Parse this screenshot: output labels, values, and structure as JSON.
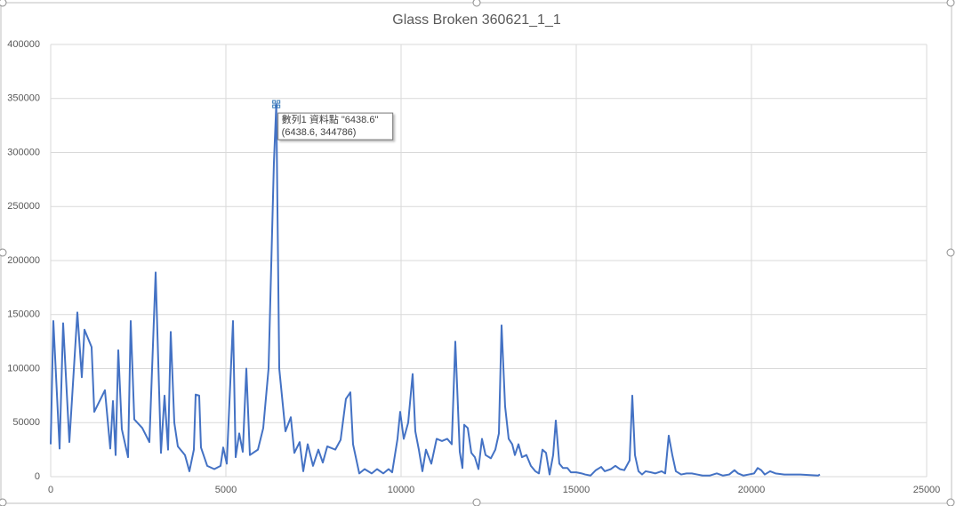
{
  "chart_data": {
    "type": "line",
    "title": "Glass Broken 360621_1_1",
    "x": [
      0,
      76,
      254,
      355,
      533,
      761,
      888,
      964,
      1167,
      1244,
      1548,
      1700,
      1777,
      1853,
      1929,
      2030,
      2208,
      2284,
      2386,
      2614,
      2817,
      2995,
      3147,
      3249,
      3350,
      3426,
      3528,
      3629,
      3832,
      3959,
      4086,
      4137,
      4238,
      4289,
      4467,
      4670,
      4848,
      4924,
      5025,
      5203,
      5279,
      5381,
      5482,
      5584,
      5685,
      5914,
      6066,
      6218,
      6370,
      6438.6,
      6523,
      6700,
      6853,
      6954,
      7106,
      7208,
      7335,
      7487,
      7639,
      7766,
      7893,
      8122,
      8274,
      8426,
      8553,
      8629,
      8807,
      8959,
      9162,
      9314,
      9492,
      9644,
      9746,
      9898,
      9974,
      10076,
      10203,
      10330,
      10406,
      10507,
      10609,
      10710,
      10863,
      11015,
      11167,
      11319,
      11446,
      11548,
      11675,
      11751,
      11802,
      11903,
      12005,
      12106,
      12208,
      12309,
      12411,
      12563,
      12690,
      12792,
      12868,
      12969,
      13071,
      13172,
      13248,
      13350,
      13451,
      13578,
      13705,
      13832,
      13934,
      14035,
      14137,
      14238,
      14340,
      14416,
      14517,
      14619,
      14746,
      14847,
      15000,
      15152,
      15253,
      15406,
      15558,
      15710,
      15812,
      15989,
      16116,
      16243,
      16370,
      16522,
      16599,
      16675,
      16776,
      16878,
      16979,
      17132,
      17258,
      17436,
      17538,
      17639,
      17741,
      17842,
      17994,
      18147,
      18299,
      18451,
      18604,
      18807,
      19010,
      19187,
      19365,
      19517,
      19618,
      19771,
      19923,
      20076,
      20177,
      20279,
      20380,
      20532,
      20685,
      20939,
      21395,
      21903,
      21954
    ],
    "series": [
      {
        "name": "數列1",
        "color": "#4472c4",
        "values": [
          30000,
          144000,
          26000,
          142000,
          32000,
          152000,
          92000,
          136000,
          120000,
          60000,
          80000,
          26000,
          70000,
          20000,
          117000,
          44000,
          18000,
          144000,
          53000,
          45000,
          32000,
          189000,
          22000,
          75000,
          25000,
          134000,
          50000,
          28000,
          20000,
          5000,
          25000,
          76000,
          75000,
          27000,
          10000,
          7000,
          10000,
          27000,
          12000,
          144000,
          18000,
          40000,
          23000,
          100000,
          20000,
          25000,
          45000,
          100000,
          290000,
          344786,
          100000,
          42000,
          55000,
          22000,
          32000,
          5000,
          30000,
          10000,
          25000,
          13000,
          28000,
          25000,
          34000,
          72000,
          78000,
          30000,
          3000,
          7000,
          3000,
          7000,
          3000,
          7000,
          4000,
          35000,
          60000,
          35000,
          50000,
          95000,
          42000,
          25000,
          5000,
          25000,
          12000,
          35000,
          33000,
          35000,
          30000,
          125000,
          23000,
          8000,
          48000,
          45000,
          22000,
          18000,
          7000,
          35000,
          20000,
          17000,
          25000,
          40000,
          140000,
          65000,
          35000,
          30000,
          20000,
          30000,
          18000,
          20000,
          10000,
          5000,
          3000,
          25000,
          22000,
          2000,
          20000,
          52000,
          12000,
          8000,
          8000,
          4000,
          4000,
          3000,
          2000,
          1000,
          6000,
          9000,
          5000,
          7000,
          10000,
          7000,
          6000,
          15000,
          75000,
          20000,
          5000,
          2000,
          5000,
          4000,
          3000,
          5000,
          3000,
          38000,
          20000,
          5000,
          2000,
          3000,
          3000,
          2000,
          1000,
          1000,
          3000,
          1000,
          2000,
          6000,
          3000,
          1000,
          2000,
          3000,
          8000,
          6000,
          2000,
          5000,
          3000,
          2000,
          2000,
          1000,
          2000
        ]
      }
    ],
    "xlim": [
      0,
      25000
    ],
    "xticks": [
      0,
      5000,
      10000,
      15000,
      20000,
      25000
    ],
    "ylim": [
      0,
      400000
    ],
    "yticks": [
      0,
      50000,
      100000,
      150000,
      200000,
      250000,
      300000,
      350000,
      400000
    ],
    "grid": true,
    "tooltip": {
      "point": 49,
      "lines": [
        "數列1 資料點 \"6438.6\"",
        "(6438.6, 344786)"
      ]
    }
  }
}
